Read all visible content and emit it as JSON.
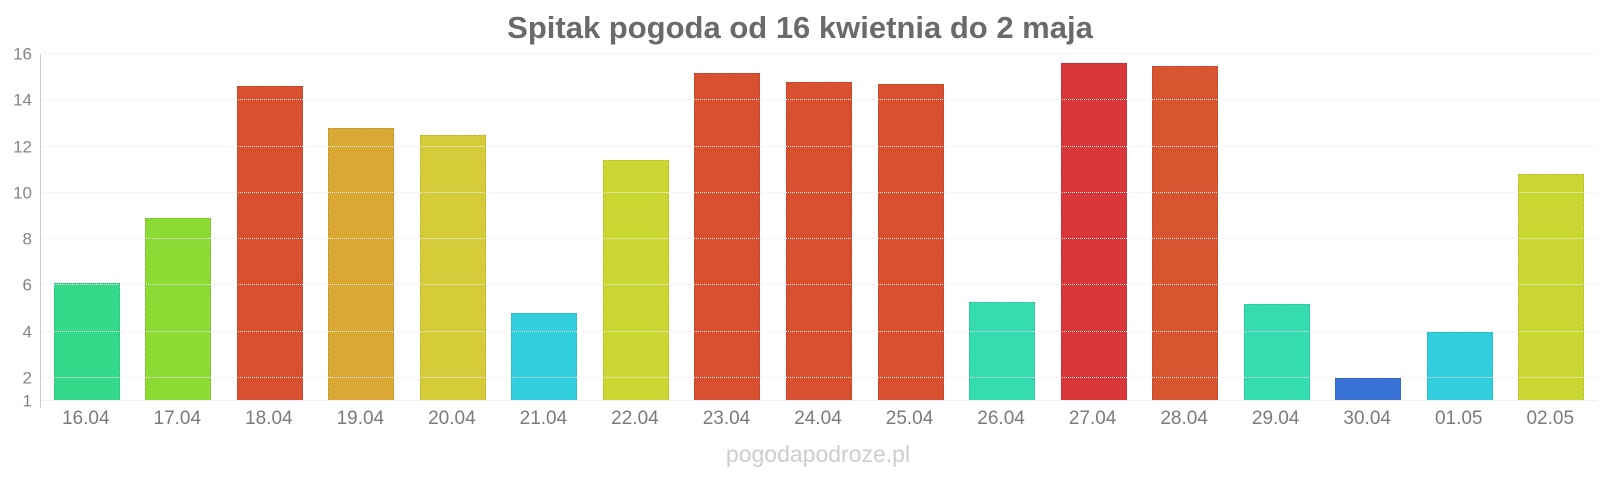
{
  "chart_data": {
    "type": "bar",
    "title": "Spitak pogoda od 16 kwietnia do 2 maja",
    "xlabel": "",
    "ylabel": "",
    "ylim": [
      1,
      16
    ],
    "yticks": [
      1,
      2,
      4,
      6,
      8,
      10,
      12,
      14,
      16
    ],
    "grid": true,
    "legend": false,
    "categories": [
      "16.04",
      "17.04",
      "18.04",
      "19.04",
      "20.04",
      "21.04",
      "22.04",
      "23.04",
      "24.04",
      "25.04",
      "26.04",
      "27.04",
      "28.04",
      "29.04",
      "30.04",
      "01.05",
      "02.05"
    ],
    "values": [
      6.1,
      8.9,
      14.6,
      12.8,
      12.5,
      4.8,
      11.4,
      15.2,
      14.8,
      14.7,
      5.3,
      15.6,
      15.5,
      5.2,
      2.0,
      4.0,
      10.8
    ],
    "bar_colors": [
      "#35d98a",
      "#8bdb34",
      "#d8502f",
      "#d9a835",
      "#d6cb38",
      "#33cede",
      "#cad732",
      "#d8502f",
      "#d8502f",
      "#d8502f",
      "#34dcb0",
      "#d93639",
      "#d8552f",
      "#34dcb0",
      "#3a73d8",
      "#33cede",
      "#cad732"
    ]
  },
  "footer": {
    "text": "pogodapodroze.pl"
  },
  "ui_colors": {
    "background": "#ffffff",
    "title_text": "#6a6a6a",
    "y_label_text": "#858585",
    "x_label_text": "#7b7b7b",
    "gridline": "#efefef",
    "axis_line": "#cccccc",
    "footer_text": "#c9ced1"
  }
}
